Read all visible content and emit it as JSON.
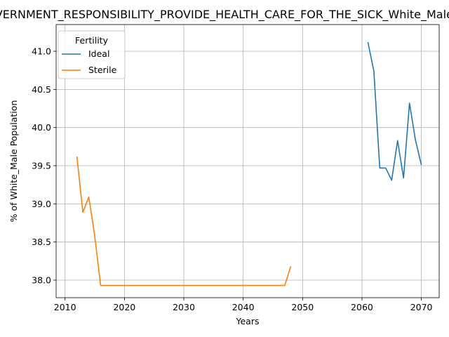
{
  "chart_data": {
    "type": "line",
    "title": "GOVERNMENT_RESPONSIBILITY_PROVIDE_HEALTH_CARE_FOR_THE_SICK_White_Male_Population",
    "xlabel": "Years",
    "ylabel": "% of White_Male Population",
    "xlim": [
      2008.5,
      2073
    ],
    "ylim": [
      37.77,
      41.35
    ],
    "xticks": [
      2010,
      2020,
      2030,
      2040,
      2050,
      2060,
      2070
    ],
    "yticks": [
      38.0,
      38.5,
      39.0,
      39.5,
      40.0,
      40.5,
      41.0
    ],
    "xtick_labels": [
      "2010",
      "2020",
      "2030",
      "2040",
      "2050",
      "2060",
      "2070"
    ],
    "ytick_labels": [
      "38.0",
      "38.5",
      "39.0",
      "39.5",
      "40.0",
      "40.5",
      "41.0"
    ],
    "grid": true,
    "legend": {
      "title": "Fertility",
      "placement": "top-left",
      "entries": [
        "Ideal",
        "Sterile"
      ]
    },
    "series": [
      {
        "name": "Ideal",
        "color": "#1f77b4",
        "x": [
          2061,
          2062,
          2063,
          2064,
          2065,
          2066,
          2067,
          2068,
          2069,
          2070
        ],
        "y": [
          41.12,
          40.74,
          39.47,
          39.47,
          39.31,
          39.83,
          39.34,
          40.32,
          39.84,
          39.51
        ]
      },
      {
        "name": "Sterile",
        "color": "#ff7f0e",
        "x": [
          2012,
          2013,
          2014,
          2015,
          2016,
          2017,
          2018,
          2019,
          2020,
          2021,
          2022,
          2023,
          2024,
          2025,
          2026,
          2027,
          2028,
          2029,
          2030,
          2031,
          2032,
          2033,
          2034,
          2035,
          2036,
          2037,
          2038,
          2039,
          2040,
          2041,
          2042,
          2043,
          2044,
          2045,
          2046,
          2047,
          2048
        ],
        "y": [
          39.62,
          38.89,
          39.09,
          38.58,
          37.93,
          37.93,
          37.93,
          37.93,
          37.93,
          37.93,
          37.93,
          37.93,
          37.93,
          37.93,
          37.93,
          37.93,
          37.93,
          37.93,
          37.93,
          37.93,
          37.93,
          37.93,
          37.93,
          37.93,
          37.93,
          37.93,
          37.93,
          37.93,
          37.93,
          37.93,
          37.93,
          37.93,
          37.93,
          37.93,
          37.93,
          37.93,
          38.18
        ]
      }
    ]
  }
}
